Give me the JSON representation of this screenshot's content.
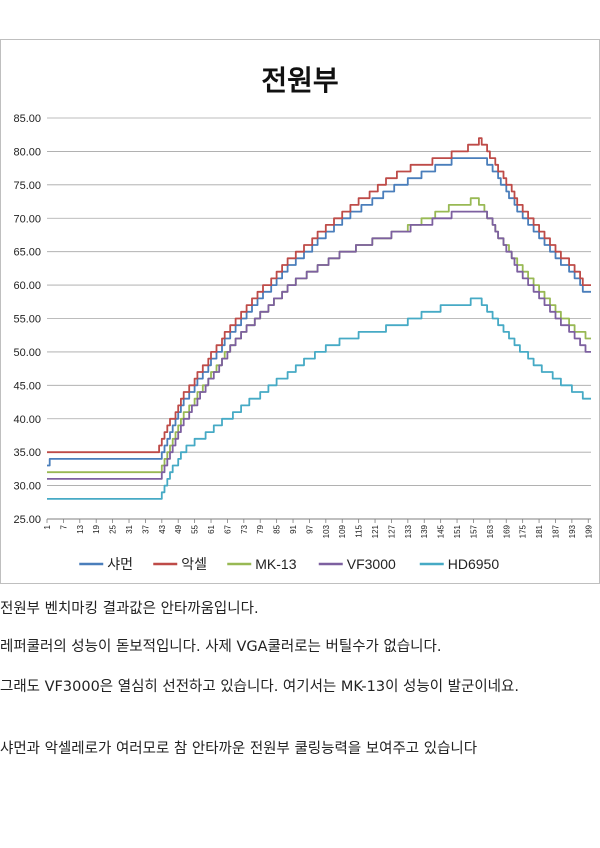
{
  "chart_data": {
    "type": "line",
    "title": "전원부",
    "xlabel": "",
    "ylabel": "",
    "ylim": [
      25,
      85
    ],
    "ytick_step": 5,
    "yticks": [
      "25.00",
      "30.00",
      "35.00",
      "40.00",
      "45.00",
      "50.00",
      "55.00",
      "60.00",
      "65.00",
      "70.00",
      "75.00",
      "80.00",
      "85.00"
    ],
    "xlim": [
      1,
      200
    ],
    "xticks": [
      "1",
      "7",
      "13",
      "19",
      "25",
      "31",
      "37",
      "43",
      "49",
      "55",
      "61",
      "67",
      "73",
      "79",
      "85",
      "91",
      "97",
      "103",
      "109",
      "115",
      "121",
      "127",
      "133",
      "139",
      "145",
      "151",
      "157",
      "163",
      "169",
      "175",
      "181",
      "187",
      "193",
      "199"
    ],
    "grid": true,
    "legend_position": "bottom",
    "series": [
      {
        "name": "샤먼",
        "color": "#4a7ebb",
        "points": [
          [
            1,
            33
          ],
          [
            3,
            34
          ],
          [
            42,
            34
          ],
          [
            44,
            36
          ],
          [
            50,
            42
          ],
          [
            70,
            54
          ],
          [
            90,
            63
          ],
          [
            110,
            70
          ],
          [
            130,
            75
          ],
          [
            145,
            78
          ],
          [
            152,
            79
          ],
          [
            161,
            79
          ],
          [
            166,
            76
          ],
          [
            175,
            70
          ],
          [
            185,
            65
          ],
          [
            195,
            61
          ],
          [
            197,
            59
          ],
          [
            200,
            59
          ]
        ]
      },
      {
        "name": "악셀",
        "color": "#be4b48",
        "points": [
          [
            1,
            35
          ],
          [
            41,
            35
          ],
          [
            43,
            37
          ],
          [
            50,
            43
          ],
          [
            70,
            55
          ],
          [
            90,
            64
          ],
          [
            110,
            71
          ],
          [
            130,
            77
          ],
          [
            145,
            79
          ],
          [
            152,
            80
          ],
          [
            158,
            81
          ],
          [
            159,
            82
          ],
          [
            165,
            78
          ],
          [
            175,
            71
          ],
          [
            185,
            66
          ],
          [
            195,
            62
          ],
          [
            197,
            60
          ],
          [
            200,
            60
          ]
        ]
      },
      {
        "name": "MK-13",
        "color": "#98b954",
        "points": [
          [
            1,
            32
          ],
          [
            42,
            32
          ],
          [
            44,
            34
          ],
          [
            50,
            40
          ],
          [
            70,
            52
          ],
          [
            90,
            60
          ],
          [
            110,
            65
          ],
          [
            130,
            68
          ],
          [
            140,
            70
          ],
          [
            150,
            72
          ],
          [
            155,
            72
          ],
          [
            157,
            73
          ],
          [
            160,
            72
          ],
          [
            165,
            68
          ],
          [
            175,
            62
          ],
          [
            185,
            57
          ],
          [
            195,
            53
          ],
          [
            200,
            52
          ]
        ]
      },
      {
        "name": "VF3000",
        "color": "#7d60a0",
        "points": [
          [
            1,
            31
          ],
          [
            42,
            31
          ],
          [
            44,
            33
          ],
          [
            50,
            39
          ],
          [
            70,
            52
          ],
          [
            90,
            60
          ],
          [
            110,
            65
          ],
          [
            130,
            68
          ],
          [
            145,
            70
          ],
          [
            152,
            71
          ],
          [
            161,
            71
          ],
          [
            165,
            68
          ],
          [
            175,
            61
          ],
          [
            185,
            56
          ],
          [
            195,
            52
          ],
          [
            198,
            50
          ],
          [
            200,
            50
          ]
        ]
      },
      {
        "name": "HD6950",
        "color": "#46aac5",
        "points": [
          [
            1,
            28
          ],
          [
            42,
            28
          ],
          [
            44,
            30
          ],
          [
            50,
            35
          ],
          [
            70,
            41
          ],
          [
            90,
            47
          ],
          [
            100,
            50
          ],
          [
            110,
            52
          ],
          [
            130,
            54
          ],
          [
            140,
            56
          ],
          [
            150,
            57
          ],
          [
            155,
            57
          ],
          [
            156,
            58
          ],
          [
            158,
            58
          ],
          [
            162,
            56
          ],
          [
            170,
            52
          ],
          [
            180,
            48
          ],
          [
            190,
            45
          ],
          [
            195,
            44
          ],
          [
            197,
            43
          ],
          [
            200,
            43
          ]
        ]
      }
    ]
  },
  "paragraphs": [
    "전원부 벤치마킹 결과값은 안타까움입니다.",
    "레퍼쿨러의 성능이 돋보적입니다. 사제 VGA쿨러로는 버틸수가 없습니다.",
    "그래도 VF3000은 열심히 선전하고 있습니다. 여기서는 MK-13이 성능이 발군이네요.",
    "샤먼과 악셀레로가 여러모로 참 안타까운 전원부 쿨링능력을 보여주고 있습니다"
  ]
}
